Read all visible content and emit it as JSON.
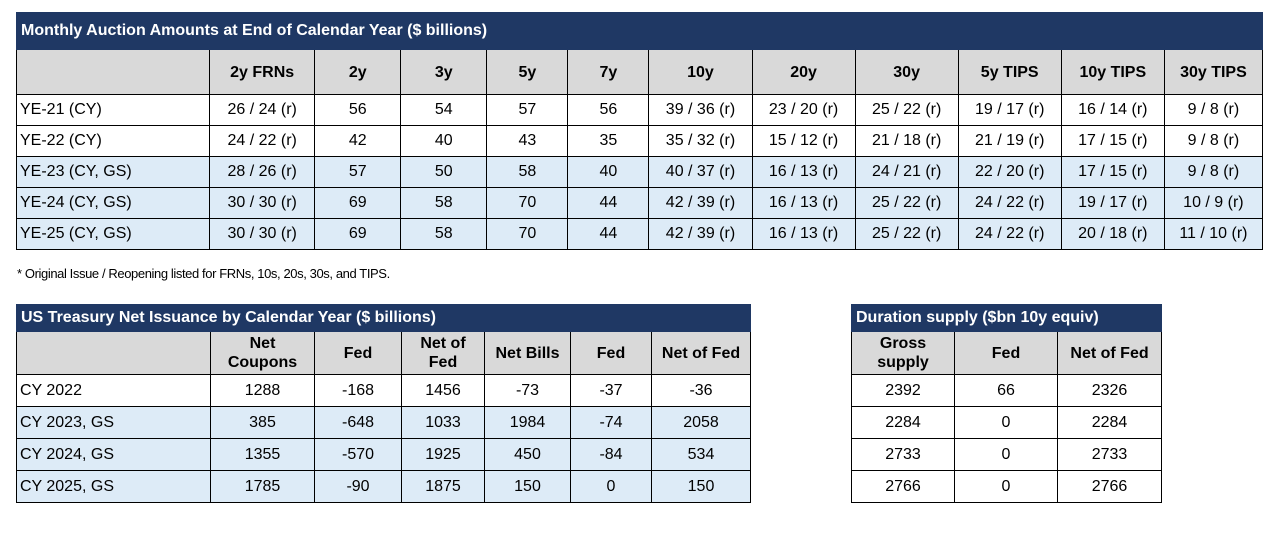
{
  "auction_table": {
    "title": "Monthly Auction Amounts at End of Calendar Year ($ billions)",
    "headers": [
      "",
      "2y FRNs",
      "2y",
      "3y",
      "5y",
      "7y",
      "10y",
      "20y",
      "30y",
      "5y TIPS",
      "10y TIPS",
      "30y TIPS"
    ],
    "rows": [
      [
        "YE-21 (CY)",
        "26 / 24 (r)",
        "56",
        "54",
        "57",
        "56",
        "39 / 36 (r)",
        "23 / 20 (r)",
        "25 / 22 (r)",
        "19 / 17 (r)",
        "16 / 14 (r)",
        "9 / 8 (r)"
      ],
      [
        "YE-22 (CY)",
        "24 / 22 (r)",
        "42",
        "40",
        "43",
        "35",
        "35 / 32 (r)",
        "15 / 12 (r)",
        "21 / 18 (r)",
        "21 / 19 (r)",
        "17 / 15 (r)",
        "9 / 8 (r)"
      ],
      [
        "YE-23 (CY, GS)",
        "28 / 26 (r)",
        "57",
        "50",
        "58",
        "40",
        "40 / 37 (r)",
        "16 / 13 (r)",
        "24 / 21 (r)",
        "22 / 20 (r)",
        "17 / 15 (r)",
        "9 / 8 (r)"
      ],
      [
        "YE-24 (CY, GS)",
        "30 / 30 (r)",
        "69",
        "58",
        "70",
        "44",
        "42 / 39 (r)",
        "16 / 13 (r)",
        "25 / 22 (r)",
        "24 / 22 (r)",
        "19 / 17 (r)",
        "10 / 9 (r)"
      ],
      [
        "YE-25 (CY, GS)",
        "30 / 30 (r)",
        "69",
        "58",
        "70",
        "44",
        "42 / 39 (r)",
        "16 / 13 (r)",
        "25 / 22 (r)",
        "24 / 22 (r)",
        "20 / 18 (r)",
        "11 / 10 (r)"
      ]
    ],
    "footnote": "* Original Issue / Reopening listed for FRNs, 10s, 20s, 30s, and TIPS."
  },
  "issuance_table": {
    "title": "US Treasury Net Issuance by Calendar Year ($ billions)",
    "headers": [
      "",
      "Net Coupons",
      "Fed",
      "Net of Fed",
      "Net Bills",
      "Fed",
      "Net of Fed"
    ],
    "rows": [
      [
        "CY 2022",
        "1288",
        "-168",
        "1456",
        "-73",
        "-37",
        "-36"
      ],
      [
        "CY 2023, GS",
        "385",
        "-648",
        "1033",
        "1984",
        "-74",
        "2058"
      ],
      [
        "CY 2024, GS",
        "1355",
        "-570",
        "1925",
        "450",
        "-84",
        "534"
      ],
      [
        "CY 2025, GS",
        "1785",
        "-90",
        "1875",
        "150",
        "0",
        "150"
      ]
    ]
  },
  "duration_table": {
    "title": "Duration supply ($bn 10y equiv)",
    "headers": [
      "Gross supply",
      "Fed",
      "Net of Fed"
    ],
    "rows": [
      [
        "2392",
        "66",
        "2326"
      ],
      [
        "2284",
        "0",
        "2284"
      ],
      [
        "2733",
        "0",
        "2733"
      ],
      [
        "2766",
        "0",
        "2766"
      ]
    ]
  },
  "colors": {
    "title_bg": "#1f3864",
    "header_bg": "#d9d9d9",
    "shade_bg": "#ddebf7"
  }
}
